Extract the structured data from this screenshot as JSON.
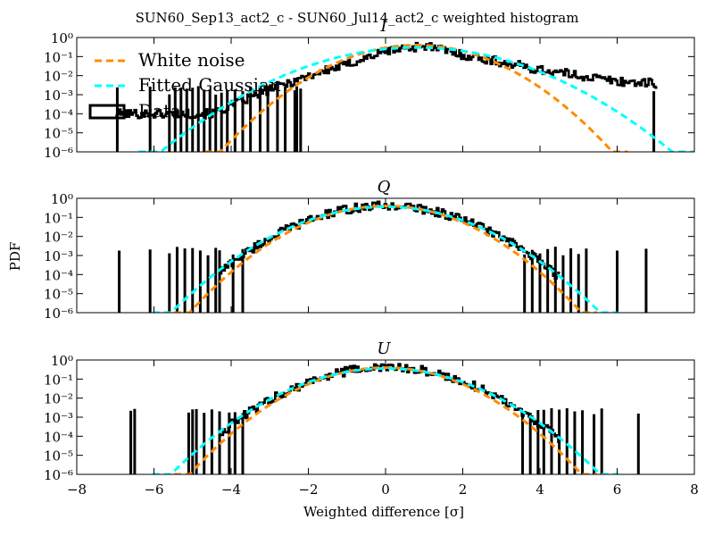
{
  "figure": {
    "suptitle": "SUN60_Sep13_act2_c - SUN60_Jul14_act2_c weighted histogram",
    "xlabel": "Weighted difference [σ]",
    "ylabel": "PDF",
    "legend": {
      "white_noise": "White noise",
      "fitted_gaussian": "Fitted Gaussian",
      "data": "Data"
    },
    "colors": {
      "white_noise": "#ff8c00",
      "fitted_gaussian": "#00ffff",
      "data": "#000000"
    }
  },
  "chart_data": [
    {
      "type": "line",
      "title": "I",
      "xlim": [
        -8,
        8
      ],
      "ylim": [
        1e-06,
        1
      ],
      "yscale": "log",
      "xticks": [
        "−8",
        "−6",
        "−4",
        "−2",
        "0",
        "2",
        "4",
        "6",
        "8"
      ],
      "yticks": [
        "10⁻⁶",
        "10⁻⁵",
        "10⁻⁴",
        "10⁻³",
        "10⁻²",
        "10⁻¹",
        "10⁰"
      ],
      "legend_position": "upper-left",
      "series": [
        {
          "name": "White noise",
          "style": "dashed",
          "model": "gaussian",
          "mu": 0.8,
          "sigma": 1.0,
          "amp": 0.4
        },
        {
          "name": "Fitted Gaussian",
          "style": "dashed",
          "model": "gaussian",
          "mu": 0.8,
          "sigma": 1.32,
          "amp": 0.3
        },
        {
          "name": "Data",
          "style": "histogram",
          "x_range": [
            -7.0,
            7.0
          ],
          "envelope": {
            "x": [
              -4.5,
              -3,
              -2,
              -1,
              0,
              1,
              2,
              3,
              4,
              5,
              6,
              6.9
            ],
            "y": [
              0.0001,
              0.002,
              0.01,
              0.04,
              0.2,
              0.38,
              0.12,
              0.05,
              0.02,
              0.01,
              0.005,
              0.004
            ]
          },
          "sparse_x": [
            -6.95,
            -6.1,
            -5.6,
            -5.45,
            -5.3,
            -5.15,
            -5.0,
            -4.85,
            -4.7,
            -4.55,
            -4.4,
            -4.25,
            -4.1,
            -3.9,
            -3.7,
            -3.5,
            -3.25,
            -3.05,
            -2.8,
            -2.6,
            -2.35,
            -2.3,
            -2.2,
            6.95
          ]
        }
      ]
    },
    {
      "type": "line",
      "title": "Q",
      "xlim": [
        -8,
        8
      ],
      "ylim": [
        1e-06,
        1
      ],
      "yscale": "log",
      "xticks": [
        "−8",
        "−6",
        "−4",
        "−2",
        "0",
        "2",
        "4",
        "6",
        "8"
      ],
      "yticks": [
        "10⁻⁶",
        "10⁻⁵",
        "10⁻⁴",
        "10⁻³",
        "10⁻²",
        "10⁻¹",
        "10⁰"
      ],
      "series": [
        {
          "name": "White noise",
          "style": "dashed",
          "model": "gaussian",
          "mu": 0.0,
          "sigma": 1.0,
          "amp": 0.4
        },
        {
          "name": "Fitted Gaussian",
          "style": "dashed",
          "model": "gaussian",
          "mu": 0.0,
          "sigma": 1.1,
          "amp": 0.36
        },
        {
          "name": "Data",
          "style": "histogram",
          "x_range": [
            -4.3,
            4.5
          ],
          "sparse_x": [
            -6.9,
            -6.1,
            -5.6,
            -5.4,
            -5.2,
            -5.0,
            -4.8,
            -4.6,
            -4.4,
            -4.3,
            -3.95,
            -3.7,
            3.6,
            3.8,
            4.0,
            4.2,
            4.4,
            4.6,
            4.8,
            5.0,
            5.2,
            6.0,
            6.75
          ]
        }
      ]
    },
    {
      "type": "line",
      "title": "U",
      "xlim": [
        -8,
        8
      ],
      "ylim": [
        1e-06,
        1
      ],
      "yscale": "log",
      "xticks": [
        "−8",
        "−6",
        "−4",
        "−2",
        "0",
        "2",
        "4",
        "6",
        "8"
      ],
      "yticks": [
        "10⁻⁶",
        "10⁻⁵",
        "10⁻⁴",
        "10⁻³",
        "10⁻²",
        "10⁻¹",
        "10⁰"
      ],
      "series": [
        {
          "name": "White noise",
          "style": "dashed",
          "model": "gaussian",
          "mu": 0.0,
          "sigma": 1.0,
          "amp": 0.4
        },
        {
          "name": "Fitted Gaussian",
          "style": "dashed",
          "model": "gaussian",
          "mu": 0.0,
          "sigma": 1.1,
          "amp": 0.36
        },
        {
          "name": "Data",
          "style": "histogram",
          "x_range": [
            -4.3,
            4.5
          ],
          "sparse_x": [
            -6.6,
            -6.5,
            -5.1,
            -5.0,
            -4.9,
            -4.7,
            -4.5,
            -4.3,
            -4.05,
            -3.9,
            -3.7,
            3.55,
            3.75,
            3.95,
            4.1,
            4.3,
            4.5,
            4.7,
            4.9,
            5.1,
            5.4,
            5.6,
            6.55
          ]
        }
      ]
    }
  ]
}
